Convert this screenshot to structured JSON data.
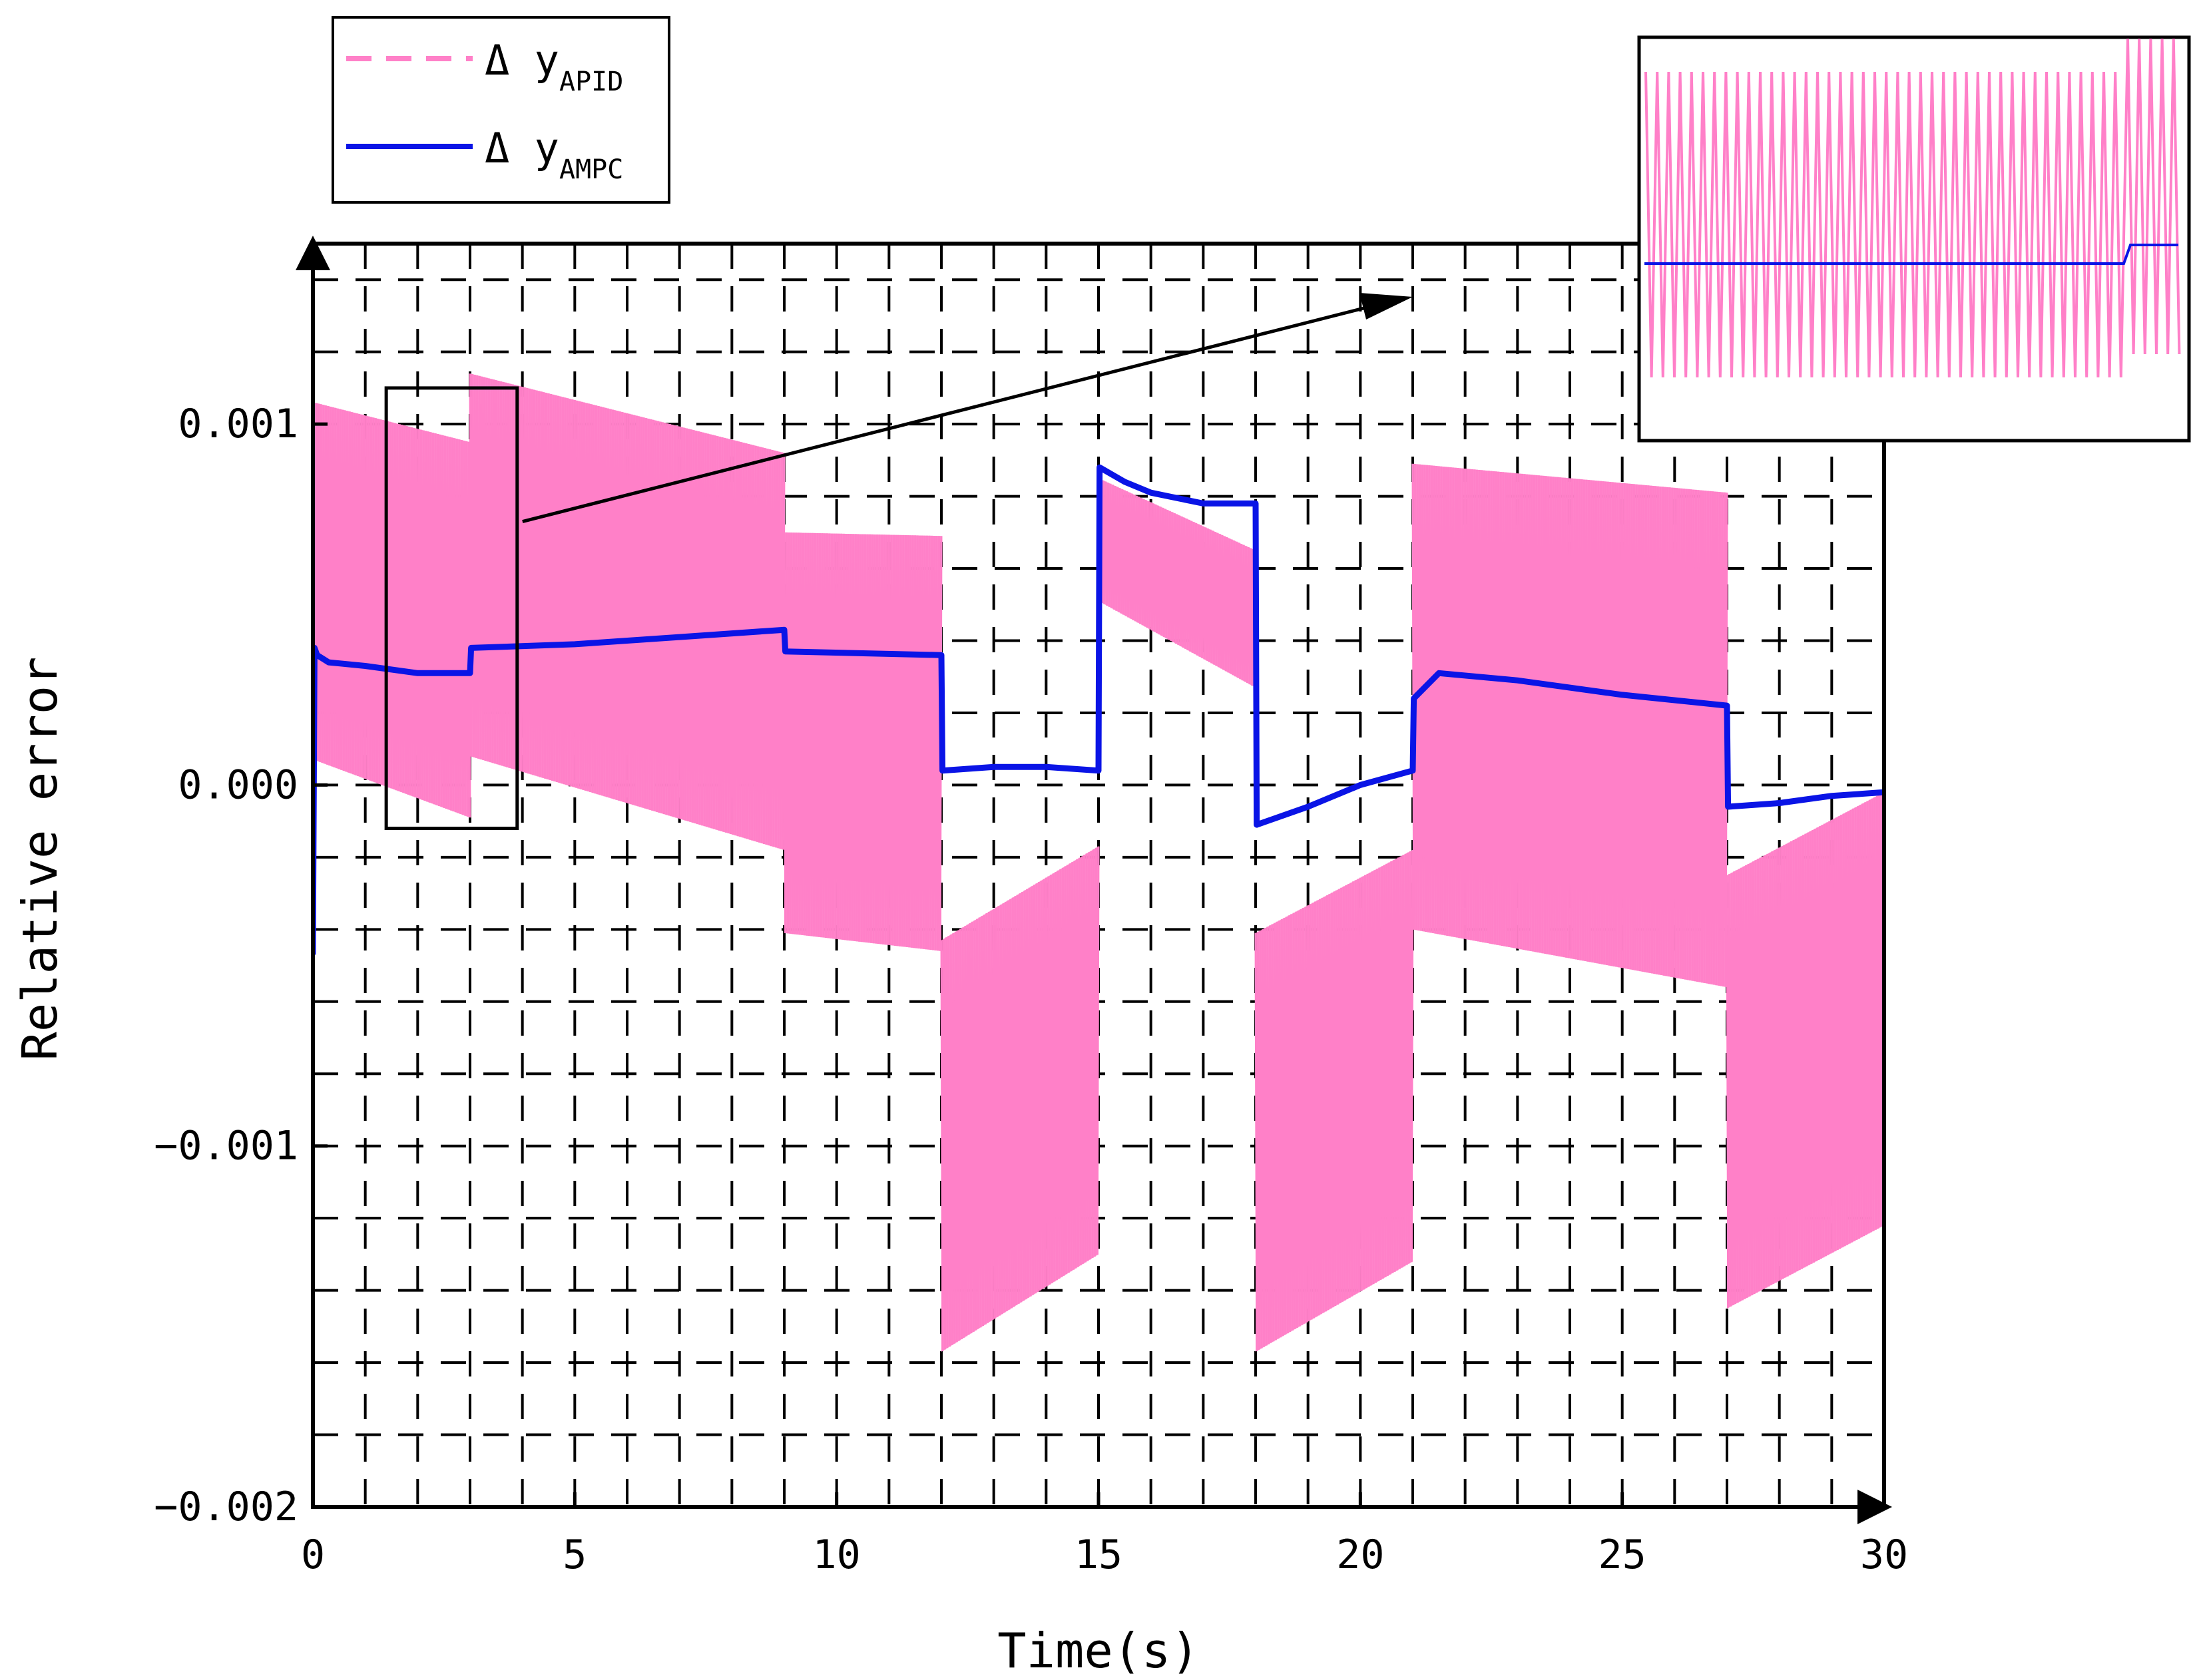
{
  "chart_data": {
    "type": "line",
    "title": "",
    "xlabel": "Time(s)",
    "ylabel": "Relative error",
    "xlim": [
      0,
      30
    ],
    "ylim": [
      -0.002,
      0.0015
    ],
    "grid": true,
    "x_ticks": [
      0,
      5,
      10,
      15,
      20,
      25,
      30
    ],
    "x_tick_labels": [
      "0",
      "5",
      "10",
      "15",
      "20",
      "25",
      "30"
    ],
    "y_ticks": [
      -0.002,
      -0.001,
      0.0,
      0.001
    ],
    "y_tick_labels": [
      "−0.002",
      "−0.001",
      "0.000",
      "0.001"
    ],
    "legend": {
      "position": "top-left",
      "entries": [
        {
          "prefix": "Δ y",
          "sub": "APID",
          "style": "dashed",
          "color": "#ff80c8"
        },
        {
          "prefix": "Δ y",
          "sub": "AMPC",
          "style": "solid",
          "color": "#0a14e6"
        }
      ]
    },
    "series": [
      {
        "name": "Δ y APID",
        "color": "#ff80c8",
        "kind": "oscillation-band",
        "segments": [
          {
            "x": [
              0.02,
              3.0
            ],
            "upper": [
              0.00106,
              0.00095
            ],
            "lower": [
              7e-05,
              -9e-05
            ]
          },
          {
            "x": [
              3.0,
              9.0
            ],
            "upper": [
              0.00114,
              0.00092
            ],
            "lower": [
              8e-05,
              -0.00018
            ]
          },
          {
            "x": [
              9.0,
              12.0
            ],
            "upper": [
              0.0007,
              0.00069
            ],
            "lower": [
              -0.00041,
              -0.00046
            ]
          },
          {
            "x": [
              12.0,
              15.0
            ],
            "upper": [
              -0.00043,
              -0.00017
            ],
            "lower": [
              -0.00157,
              -0.0013
            ]
          },
          {
            "x": [
              15.0,
              18.0
            ],
            "upper": [
              0.00085,
              0.00065
            ],
            "lower": [
              0.00051,
              0.00027
            ]
          },
          {
            "x": [
              18.0,
              21.0
            ],
            "upper": [
              -0.00041,
              -0.00018
            ],
            "lower": [
              -0.00157,
              -0.00132
            ]
          },
          {
            "x": [
              21.0,
              27.0
            ],
            "upper": [
              0.00089,
              0.00081
            ],
            "lower": [
              -0.0004,
              -0.00056
            ]
          },
          {
            "x": [
              27.0,
              30.0
            ],
            "upper": [
              -0.00025,
              -2e-05
            ],
            "lower": [
              -0.00145,
              -0.00122
            ]
          }
        ]
      },
      {
        "name": "Δ y AMPC",
        "color": "#0a14e6",
        "kind": "line",
        "x": [
          0.0,
          0.03,
          0.08,
          0.3,
          1.0,
          2.0,
          3.0,
          3.02,
          5.0,
          7.0,
          9.0,
          9.02,
          12.0,
          12.02,
          13.0,
          14.0,
          15.0,
          15.02,
          15.5,
          16.0,
          17.0,
          18.0,
          18.02,
          19.0,
          20.0,
          21.0,
          21.02,
          21.5,
          23.0,
          25.0,
          27.0,
          27.02,
          28.0,
          29.0,
          30.0
        ],
        "y": [
          -0.00047,
          0.00038,
          0.00036,
          0.00034,
          0.00033,
          0.00031,
          0.00031,
          0.00038,
          0.00039,
          0.00041,
          0.00043,
          0.00037,
          0.00036,
          4e-05,
          5e-05,
          5e-05,
          4e-05,
          0.00088,
          0.00084,
          0.00081,
          0.00078,
          0.00078,
          -0.00011,
          -6e-05,
          0.0,
          4e-05,
          0.00024,
          0.00031,
          0.00029,
          0.00025,
          0.00022,
          -6e-05,
          -5e-05,
          -3e-05,
          -2e-05
        ]
      }
    ],
    "annotations": [
      {
        "type": "zoom-box",
        "x_range": [
          1.4,
          3.9
        ],
        "y_range": [
          -0.00012,
          0.0011
        ]
      },
      {
        "type": "inset",
        "position": "top-right",
        "content": "zoomed view of APID oscillation and AMPC step"
      }
    ]
  }
}
